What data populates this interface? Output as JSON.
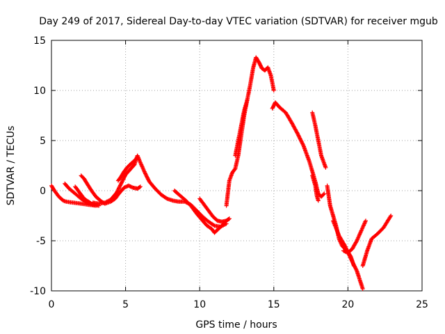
{
  "chart_data": {
    "type": "scatter",
    "title": "Day 249 of 2017, Sidereal Day-to-day VTEC variation (SDTVAR) for receiver mgub",
    "xlabel": "GPS time / hours",
    "ylabel": "SDTVAR / TECUs",
    "xlim": [
      0,
      25
    ],
    "ylim": [
      -10,
      15
    ],
    "xticks": [
      "0",
      "5",
      "10",
      "15",
      "20",
      "25"
    ],
    "yticks": [
      "-10",
      "-5",
      "0",
      "5",
      "10",
      "15"
    ],
    "grid": true,
    "marker": "plus",
    "color": "#ff0000",
    "series": [
      {
        "x": [
          0.0,
          0.2,
          0.5,
          0.8,
          1.0,
          1.5,
          2.0,
          2.5,
          3.0
        ],
        "y": [
          0.5,
          0.0,
          -0.6,
          -1.0,
          -1.1,
          -1.2,
          -1.3,
          -1.4,
          -1.5
        ]
      },
      {
        "x": [
          0.9,
          1.2,
          1.6,
          2.0,
          2.4,
          2.8,
          3.2
        ],
        "y": [
          0.7,
          0.2,
          -0.3,
          -0.8,
          -1.2,
          -1.4,
          -1.5
        ]
      },
      {
        "x": [
          1.6,
          1.8,
          2.0,
          2.2,
          2.5,
          2.7,
          3.0
        ],
        "y": [
          0.4,
          0.0,
          -0.4,
          -0.8,
          -1.1,
          -1.3,
          -1.4
        ]
      },
      {
        "x": [
          2.0,
          2.2,
          2.4,
          2.7,
          3.0,
          3.3,
          3.6,
          4.0,
          4.3,
          4.6,
          4.9,
          5.2,
          5.5,
          5.8,
          6.0
        ],
        "y": [
          1.5,
          1.2,
          0.7,
          0.0,
          -0.6,
          -1.0,
          -1.3,
          -1.1,
          -0.8,
          -0.2,
          0.3,
          0.5,
          0.3,
          0.2,
          0.4
        ]
      },
      {
        "x": [
          2.8,
          3.2,
          3.6,
          4.0,
          4.4,
          4.7,
          5.0,
          5.3,
          5.6,
          5.8,
          6.0,
          6.3,
          6.6,
          7.0,
          7.4,
          7.8,
          8.2,
          8.6,
          9.0,
          9.4,
          9.8,
          10.2,
          10.6,
          11.0,
          11.4,
          11.8
        ],
        "y": [
          -1.2,
          -1.3,
          -1.2,
          -0.9,
          -0.2,
          0.7,
          1.6,
          2.1,
          2.6,
          3.5,
          2.8,
          1.8,
          0.9,
          0.2,
          -0.4,
          -0.8,
          -1.0,
          -1.1,
          -1.1,
          -1.4,
          -2.0,
          -2.6,
          -3.1,
          -3.5,
          -3.6,
          -3.3
        ]
      },
      {
        "x": [
          4.5,
          4.7,
          4.9,
          5.1,
          5.3,
          5.6,
          5.8
        ],
        "y": [
          1.0,
          1.4,
          1.9,
          2.3,
          2.6,
          3.0,
          3.3
        ]
      },
      {
        "x": [
          8.3,
          8.6,
          9.0,
          9.4,
          9.8,
          10.2,
          10.5,
          10.8,
          11.0,
          11.2,
          11.5,
          11.8,
          12.0
        ],
        "y": [
          0.0,
          -0.4,
          -0.9,
          -1.5,
          -2.3,
          -3.0,
          -3.5,
          -3.8,
          -4.2,
          -3.9,
          -3.5,
          -3.0,
          -2.8
        ]
      },
      {
        "x": [
          10.0,
          10.3,
          10.6,
          10.9,
          11.2,
          11.5,
          11.8,
          12.0
        ],
        "y": [
          -0.8,
          -1.4,
          -2.0,
          -2.6,
          -3.0,
          -3.1,
          -3.0,
          -2.8
        ]
      },
      {
        "x": [
          11.8,
          12.0,
          12.2,
          12.4,
          12.6,
          12.8,
          13.0,
          13.2,
          13.4,
          13.6,
          13.8,
          14.0,
          14.2,
          14.4,
          14.6,
          14.8,
          15.0
        ],
        "y": [
          -1.5,
          1.0,
          1.8,
          2.2,
          3.5,
          5.5,
          7.5,
          9.0,
          10.5,
          12.2,
          13.3,
          12.8,
          12.2,
          12.0,
          12.3,
          11.5,
          10.0
        ]
      },
      {
        "x": [
          12.4,
          12.6,
          12.8,
          13.0,
          13.2
        ],
        "y": [
          3.5,
          5.0,
          6.5,
          8.0,
          9.0
        ]
      },
      {
        "x": [
          14.9,
          15.1,
          15.4,
          15.8,
          16.2,
          16.6,
          17.0,
          17.4,
          17.8,
          18.0,
          18.2,
          18.4
        ],
        "y": [
          8.2,
          8.8,
          8.3,
          7.8,
          6.8,
          5.7,
          4.5,
          2.9,
          0.9,
          -0.3,
          -0.6,
          -0.3
        ]
      },
      {
        "x": [
          17.6,
          17.8,
          18.0,
          18.2,
          18.5
        ],
        "y": [
          7.8,
          6.5,
          5.0,
          3.5,
          2.3
        ]
      },
      {
        "x": [
          17.6,
          17.8,
          17.9,
          18.0
        ],
        "y": [
          1.5,
          0.5,
          -0.5,
          -1.0
        ]
      },
      {
        "x": [
          18.6,
          18.8,
          19.0,
          19.2,
          19.4,
          19.6,
          19.8,
          20.0,
          20.2,
          20.4
        ],
        "y": [
          0.5,
          -1.5,
          -2.5,
          -3.5,
          -4.8,
          -5.5,
          -5.8,
          -6.1,
          -6.6,
          -7.5
        ]
      },
      {
        "x": [
          19.0,
          19.4,
          19.8,
          20.2,
          20.6,
          21.0
        ],
        "y": [
          -3.0,
          -4.5,
          -5.5,
          -6.8,
          -8.0,
          -9.8
        ]
      },
      {
        "x": [
          19.7,
          20.0,
          20.3,
          20.6,
          20.9,
          21.2
        ],
        "y": [
          -6.0,
          -6.2,
          -5.8,
          -5.0,
          -4.0,
          -3.0
        ]
      },
      {
        "x": [
          21.0,
          21.3,
          21.6,
          22.0,
          22.4,
          22.9
        ],
        "y": [
          -7.5,
          -6.0,
          -4.8,
          -4.3,
          -3.7,
          -2.5
        ]
      }
    ]
  }
}
